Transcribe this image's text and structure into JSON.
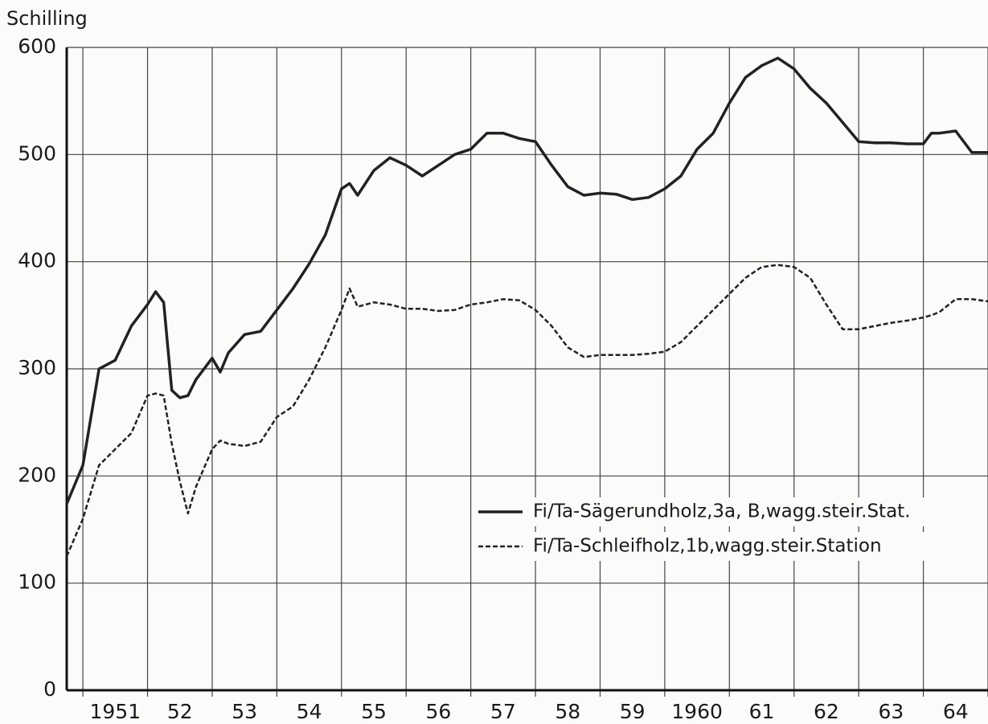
{
  "chart_data": {
    "type": "line",
    "ylabel": "Schilling",
    "x": [
      1950.75,
      1951.0,
      1951.25,
      1951.5,
      1951.75,
      1952.0,
      1952.125,
      1952.25,
      1952.375,
      1952.5,
      1952.625,
      1952.75,
      1953.0,
      1953.125,
      1953.25,
      1953.5,
      1953.75,
      1954.0,
      1954.25,
      1954.5,
      1954.75,
      1955.0,
      1955.125,
      1955.25,
      1955.5,
      1955.75,
      1956.0,
      1956.25,
      1956.5,
      1956.75,
      1957.0,
      1957.25,
      1957.5,
      1957.75,
      1958.0,
      1958.25,
      1958.5,
      1958.75,
      1959.0,
      1959.25,
      1959.5,
      1959.75,
      1960.0,
      1960.25,
      1960.5,
      1960.75,
      1961.0,
      1961.25,
      1961.5,
      1961.75,
      1962.0,
      1962.25,
      1962.5,
      1962.75,
      1963.0,
      1963.25,
      1963.5,
      1963.75,
      1964.0,
      1964.125,
      1964.25,
      1964.5,
      1964.75,
      1965.0
    ],
    "series": [
      {
        "name": "Fi/Ta-Sägerundholz,3a, B,wagg.steir.Stat.",
        "color": "#222222",
        "line_style": "solid",
        "values": [
          174,
          210,
          300,
          308,
          340,
          360,
          372,
          362,
          280,
          273,
          275,
          290,
          310,
          297,
          315,
          332,
          335,
          355,
          375,
          398,
          425,
          468,
          473,
          462,
          485,
          497,
          490,
          480,
          490,
          500,
          505,
          520,
          520,
          515,
          512,
          490,
          470,
          462,
          464,
          463,
          458,
          460,
          468,
          480,
          505,
          520,
          548,
          572,
          583,
          590,
          580,
          562,
          548,
          530,
          512,
          511,
          511,
          510,
          510,
          520,
          520,
          522,
          502,
          502
        ]
      },
      {
        "name": "Fi/Ta-Schleifholz,1b,wagg.steir.Station",
        "color": "#222222",
        "line_style": "dashed",
        "values": [
          125,
          160,
          210,
          225,
          240,
          275,
          277,
          275,
          230,
          195,
          165,
          190,
          225,
          233,
          230,
          228,
          232,
          255,
          265,
          290,
          320,
          355,
          375,
          358,
          362,
          360,
          356,
          356,
          354,
          355,
          360,
          362,
          365,
          364,
          355,
          340,
          320,
          311,
          313,
          313,
          313,
          314,
          316,
          325,
          340,
          355,
          370,
          385,
          395,
          397,
          395,
          385,
          360,
          337,
          337,
          340,
          343,
          345,
          348,
          350,
          353,
          365,
          365,
          363
        ]
      }
    ],
    "xlim": [
      1950.75,
      1965
    ],
    "xticks": [
      {
        "value": 1951.5,
        "label": "1951"
      },
      {
        "value": 1952.5,
        "label": "52"
      },
      {
        "value": 1953.5,
        "label": "53"
      },
      {
        "value": 1954.5,
        "label": "54"
      },
      {
        "value": 1955.5,
        "label": "55"
      },
      {
        "value": 1956.5,
        "label": "56"
      },
      {
        "value": 1957.5,
        "label": "57"
      },
      {
        "value": 1958.5,
        "label": "58"
      },
      {
        "value": 1959.5,
        "label": "59"
      },
      {
        "value": 1960.5,
        "label": "1960"
      },
      {
        "value": 1961.5,
        "label": "61"
      },
      {
        "value": 1962.5,
        "label": "62"
      },
      {
        "value": 1963.5,
        "label": "63"
      },
      {
        "value": 1964.5,
        "label": "64"
      }
    ],
    "xgrid": [
      1951,
      1952,
      1953,
      1954,
      1955,
      1956,
      1957,
      1958,
      1959,
      1960,
      1961,
      1962,
      1963,
      1964,
      1965
    ],
    "ylim": [
      0,
      600
    ],
    "yticks": [
      0,
      100,
      200,
      300,
      400,
      500,
      600
    ],
    "grid": true,
    "legend": "right"
  }
}
